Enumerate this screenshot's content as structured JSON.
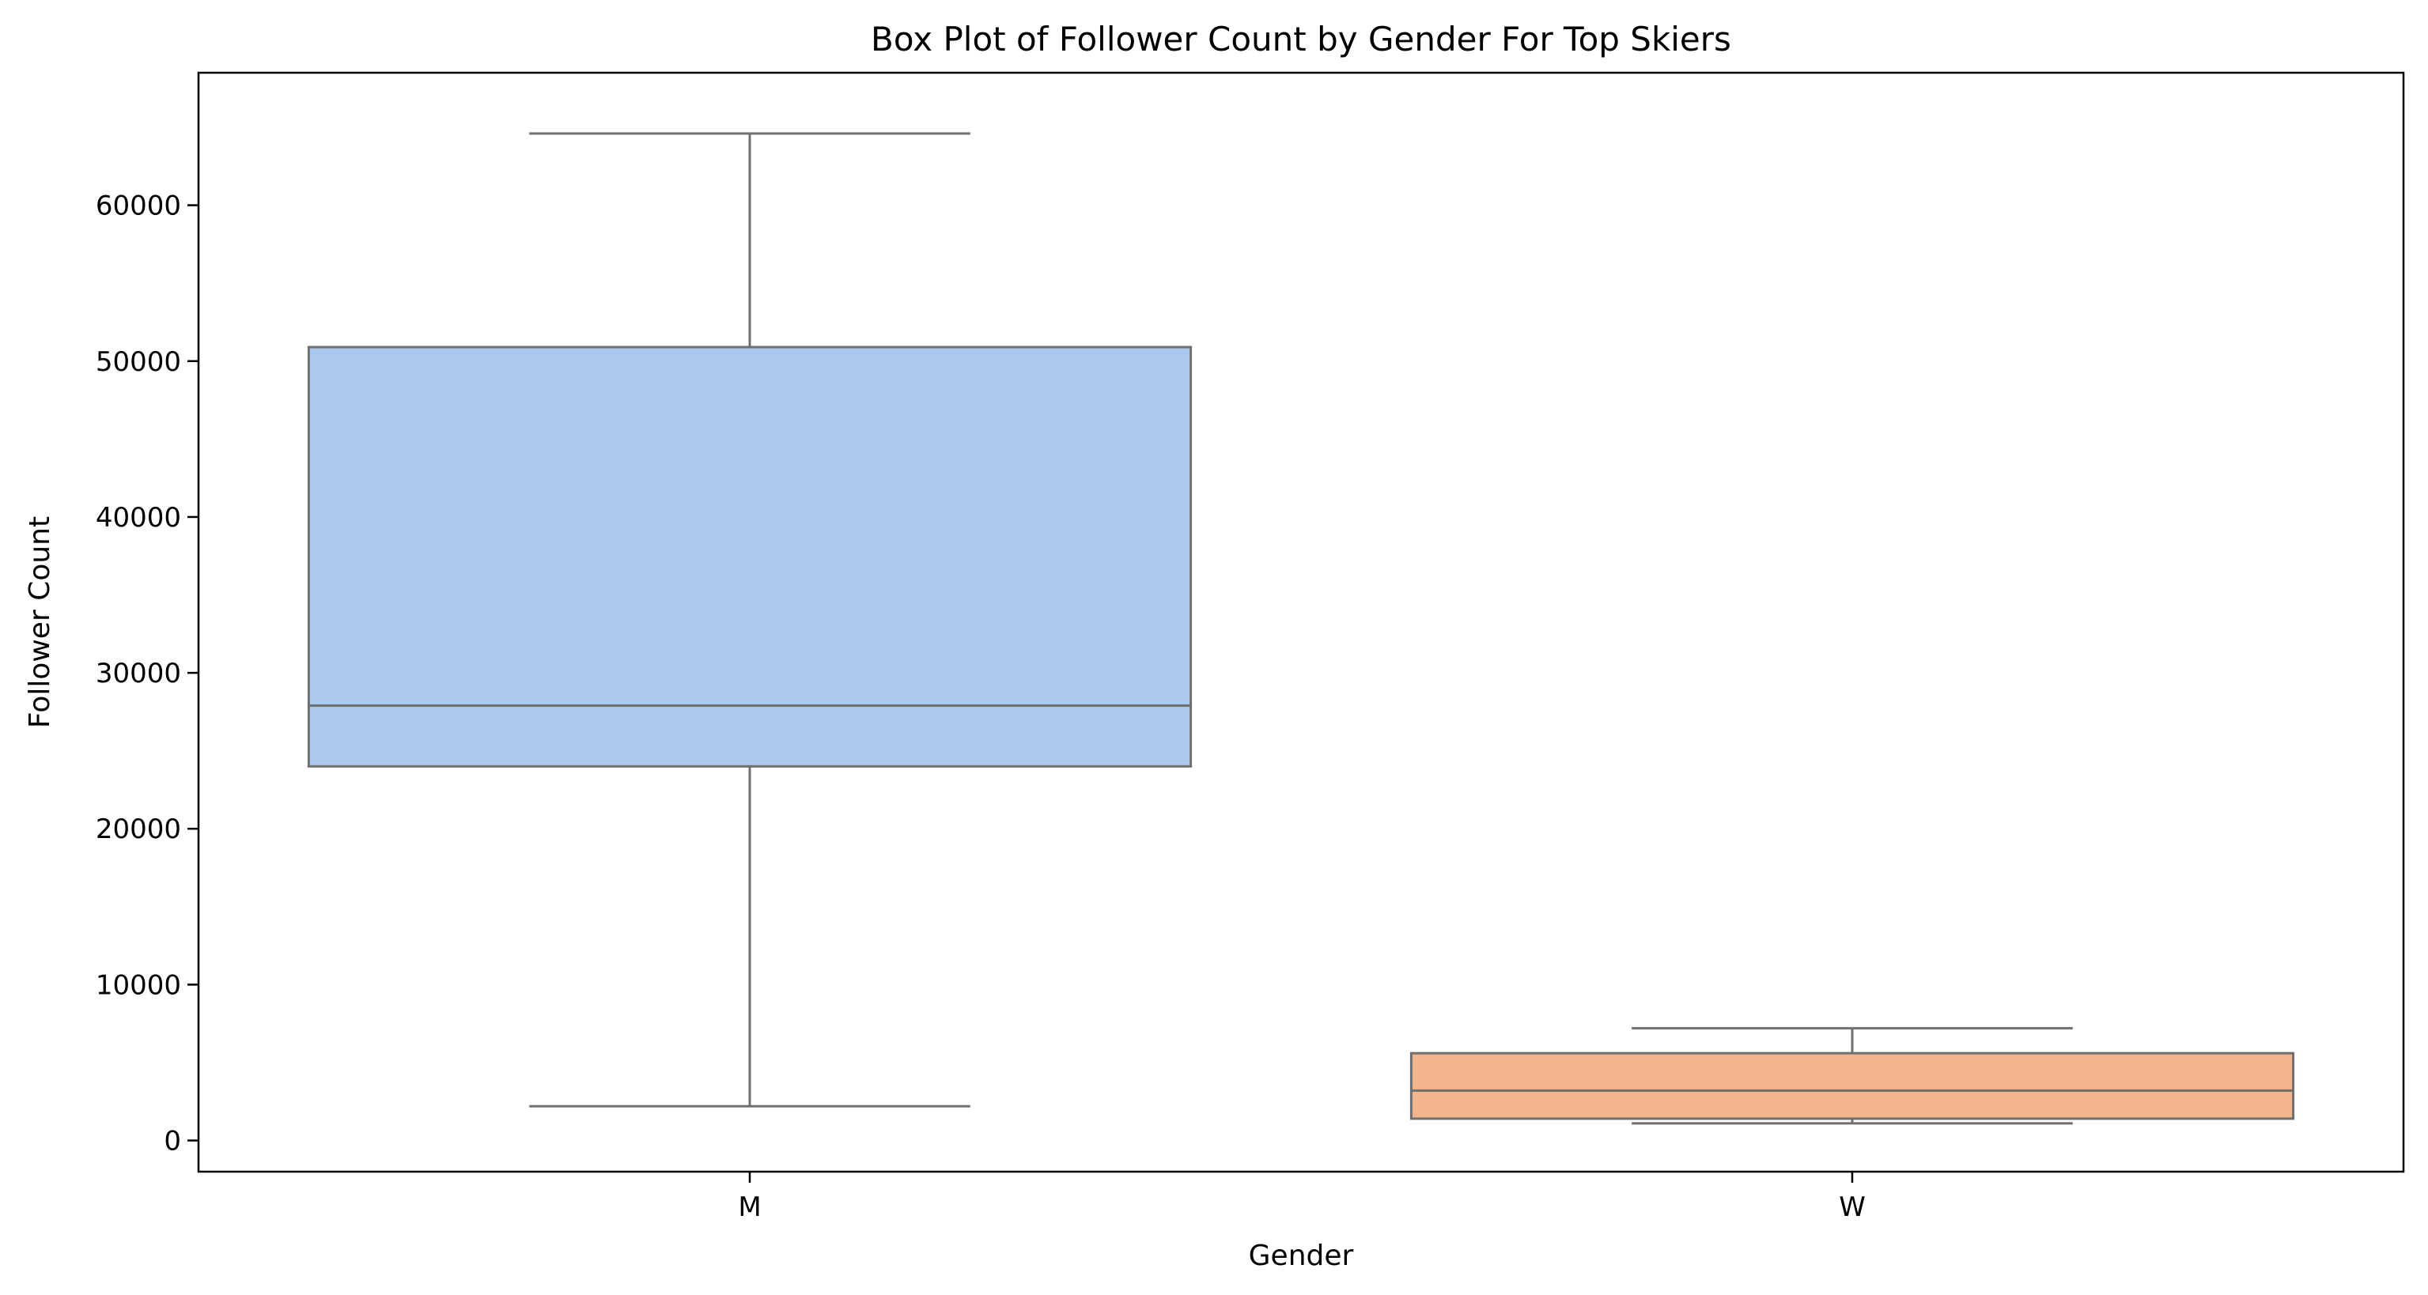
{
  "chart_data": {
    "type": "box",
    "title": "Box Plot of Follower Count by Gender For Top Skiers",
    "xlabel": "Gender",
    "ylabel": "Follower Count",
    "categories": [
      "M",
      "W"
    ],
    "ylim": [
      -2000,
      68500
    ],
    "yticks": [
      0,
      10000,
      20000,
      30000,
      40000,
      50000,
      60000
    ],
    "ytick_labels": [
      "0",
      "10000",
      "20000",
      "30000",
      "40000",
      "50000",
      "60000"
    ],
    "grid": false,
    "boxes": [
      {
        "category": "M",
        "whisker_low": 2200,
        "q1": 24000,
        "median": 27900,
        "q3": 50900,
        "whisker_high": 64600,
        "color": "#abc9ec"
      },
      {
        "category": "W",
        "whisker_low": 1100,
        "q1": 1400,
        "median": 3200,
        "q3": 5600,
        "whisker_high": 7200,
        "color": "#f1b48b"
      }
    ],
    "line_color": "#707070"
  }
}
